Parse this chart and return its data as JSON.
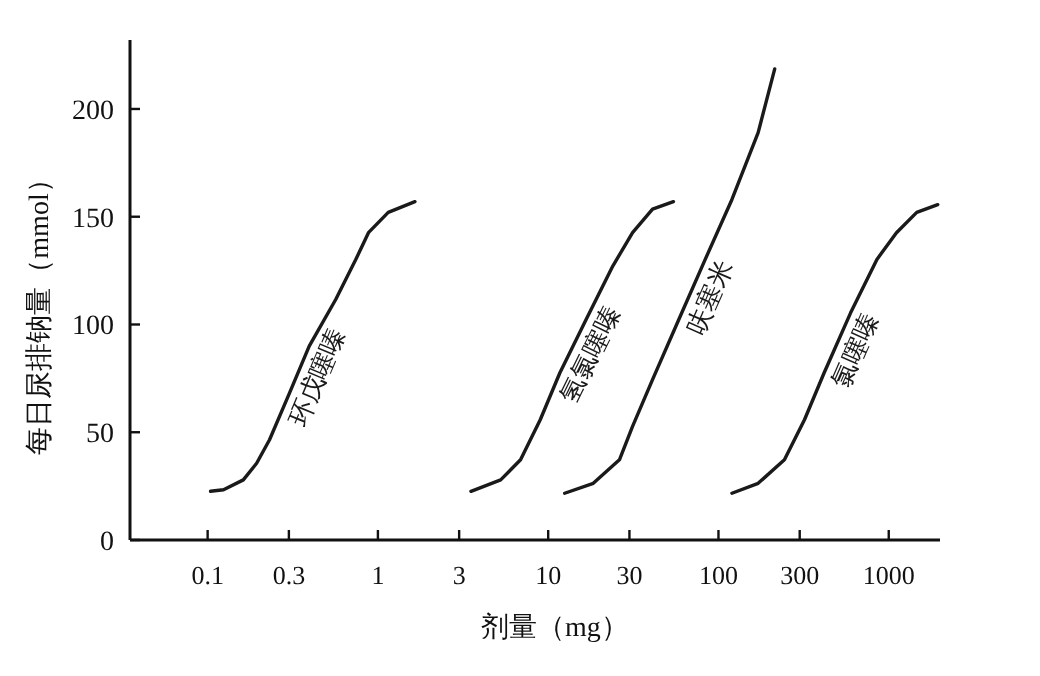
{
  "chart_data": {
    "type": "line",
    "xlabel": "剂量（mg）",
    "ylabel": "每日尿排钠量（mmol）",
    "log": "x",
    "xlim": [
      0.035,
      2000
    ],
    "xticks": [
      0.1,
      0.3,
      1,
      3,
      10,
      30,
      100,
      300,
      1000
    ],
    "ylim": [
      0,
      232
    ],
    "yticks": [
      0,
      50,
      100,
      150,
      200
    ],
    "grid": false,
    "legend": false,
    "marker": "none",
    "line_style": "solid",
    "series": [
      {
        "name": "环戊噻嗪",
        "color": "#1a1a1a",
        "x": [
          0.104,
          0.124,
          0.162,
          0.194,
          0.231,
          0.302,
          0.395,
          0.565,
          0.74,
          0.88,
          1.15,
          1.65
        ],
        "values": [
          22.6,
          23.3,
          27.9,
          35.6,
          46.5,
          68,
          90,
          111.6,
          130,
          142.6,
          152,
          157
        ]
      },
      {
        "name": "氢氯噻嗪",
        "color": "#1a1a1a",
        "x": [
          3.52,
          5.26,
          6.88,
          8.98,
          11.7,
          16.7,
          24,
          31.3,
          41,
          54.4
        ],
        "values": [
          22.6,
          27.9,
          37.2,
          55.8,
          77.5,
          102.3,
          127.2,
          142.6,
          153.5,
          157
        ]
      },
      {
        "name": "呋塞米",
        "color": "#1a1a1a",
        "x": [
          12.5,
          18.4,
          26.2,
          31.3,
          41,
          58.5,
          83.6,
          120,
          171,
          214
        ],
        "values": [
          21.7,
          26.3,
          37.2,
          52.7,
          74.4,
          102.3,
          130.2,
          158,
          189,
          218.6
        ]
      },
      {
        "name": "氯噻嗪",
        "color": "#1a1a1a",
        "x": [
          120,
          171,
          244,
          320,
          417,
          597,
          852,
          1110,
          1460,
          1940
        ],
        "values": [
          21.7,
          26.3,
          37.2,
          55.8,
          77.5,
          105.4,
          130.2,
          142.6,
          152,
          155.6
        ]
      }
    ]
  }
}
